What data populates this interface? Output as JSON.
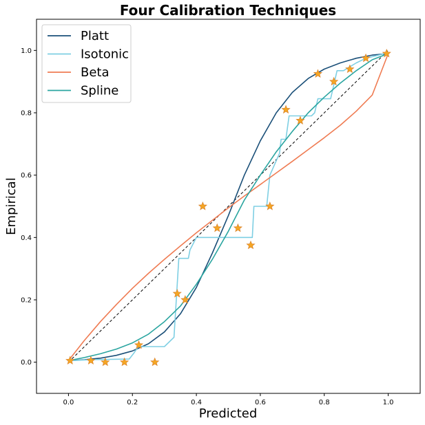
{
  "chart_data": {
    "type": "line",
    "title": "Four Calibration Techniques",
    "xlabel": "Predicted",
    "ylabel": "Empirical",
    "xlim": [
      -0.1,
      1.1
    ],
    "ylim": [
      -0.1,
      1.1
    ],
    "xticks": [
      "0.0",
      "0.2",
      "0.4",
      "0.6",
      "0.8",
      "1.0"
    ],
    "yticks": [
      "0.0",
      "0.2",
      "0.4",
      "0.6",
      "0.8",
      "1.0"
    ],
    "grid": false,
    "legend_position": "top-left",
    "series": [
      {
        "name": "Platt",
        "color": "#1a4f78",
        "x": [
          0.0,
          0.05,
          0.1,
          0.15,
          0.2,
          0.25,
          0.3,
          0.35,
          0.4,
          0.45,
          0.5,
          0.55,
          0.6,
          0.65,
          0.7,
          0.75,
          0.8,
          0.85,
          0.9,
          0.95,
          1.0
        ],
        "y": [
          0.005,
          0.008,
          0.013,
          0.022,
          0.036,
          0.059,
          0.097,
          0.155,
          0.24,
          0.35,
          0.47,
          0.6,
          0.71,
          0.8,
          0.865,
          0.91,
          0.94,
          0.96,
          0.975,
          0.985,
          0.99
        ]
      },
      {
        "name": "Isotonic",
        "color": "#7ecfe3",
        "x": [
          0.005,
          0.07,
          0.19,
          0.205,
          0.215,
          0.22,
          0.3,
          0.33,
          0.345,
          0.375,
          0.38,
          0.4,
          0.575,
          0.58,
          0.62,
          0.625,
          0.63,
          0.66,
          0.665,
          0.68,
          0.69,
          0.71,
          0.76,
          0.77,
          0.78,
          0.8,
          0.82,
          0.84,
          0.86,
          0.9,
          0.93,
          0.99
        ],
        "y": [
          0.005,
          0.008,
          0.01,
          0.03,
          0.045,
          0.05,
          0.05,
          0.08,
          0.333,
          0.333,
          0.36,
          0.4,
          0.4,
          0.5,
          0.5,
          0.55,
          0.6,
          0.67,
          0.715,
          0.715,
          0.79,
          0.79,
          0.79,
          0.8,
          0.845,
          0.845,
          0.845,
          0.935,
          0.935,
          0.96,
          0.975,
          0.99
        ]
      },
      {
        "name": "Beta",
        "color": "#ef7b52",
        "x": [
          0.0,
          0.05,
          0.1,
          0.15,
          0.2,
          0.25,
          0.3,
          0.35,
          0.4,
          0.45,
          0.5,
          0.55,
          0.6,
          0.65,
          0.7,
          0.75,
          0.8,
          0.85,
          0.9,
          0.95,
          1.0
        ],
        "y": [
          0.005,
          0.07,
          0.13,
          0.185,
          0.237,
          0.285,
          0.33,
          0.373,
          0.415,
          0.455,
          0.495,
          0.533,
          0.57,
          0.607,
          0.644,
          0.682,
          0.72,
          0.76,
          0.805,
          0.857,
          0.99
        ]
      },
      {
        "name": "Spline",
        "color": "#2aa5a0",
        "x": [
          0.0,
          0.05,
          0.1,
          0.15,
          0.2,
          0.25,
          0.3,
          0.35,
          0.4,
          0.45,
          0.5,
          0.55,
          0.6,
          0.65,
          0.7,
          0.75,
          0.8,
          0.85,
          0.9,
          0.95,
          1.0
        ],
        "y": [
          0.005,
          0.015,
          0.027,
          0.042,
          0.062,
          0.09,
          0.13,
          0.18,
          0.25,
          0.33,
          0.42,
          0.52,
          0.6,
          0.675,
          0.74,
          0.8,
          0.85,
          0.895,
          0.935,
          0.97,
          0.99
        ]
      }
    ],
    "reference_line": {
      "x": [
        0.0,
        1.0
      ],
      "y": [
        0.0,
        1.0
      ],
      "style": "dashed",
      "color": "#000000"
    },
    "points": {
      "marker": "star",
      "color": "#f5a623",
      "edge_color": "#d9822b",
      "x": [
        0.005,
        0.07,
        0.115,
        0.175,
        0.22,
        0.27,
        0.34,
        0.365,
        0.42,
        0.465,
        0.53,
        0.57,
        0.63,
        0.68,
        0.725,
        0.78,
        0.83,
        0.88,
        0.93,
        0.995
      ],
      "y": [
        0.005,
        0.005,
        0.0,
        0.0,
        0.055,
        0.0,
        0.22,
        0.2,
        0.5,
        0.43,
        0.43,
        0.375,
        0.5,
        0.81,
        0.775,
        0.925,
        0.9,
        0.94,
        0.975,
        0.99
      ]
    }
  }
}
